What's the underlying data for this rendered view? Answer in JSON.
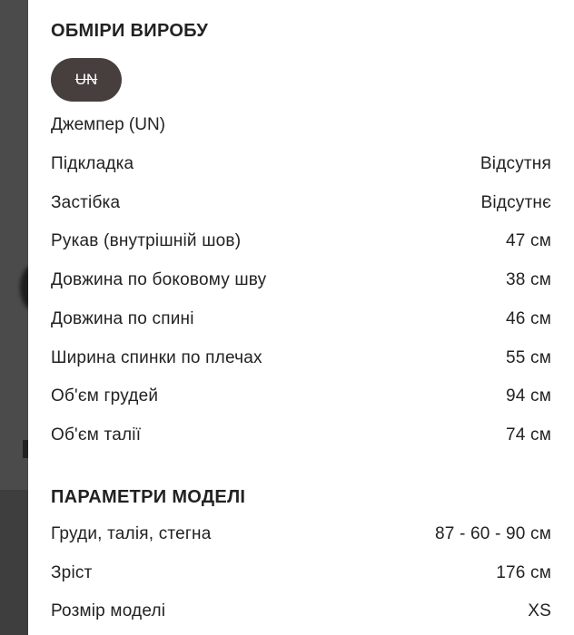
{
  "measurements": {
    "title": "ОБМІРИ ВИРОБУ",
    "size_chip": "UN",
    "product": "Джемпер (UN)",
    "rows": [
      {
        "label": "Підкладка",
        "value": "Відсутня"
      },
      {
        "label": "Застібка",
        "value": "Відсутнє"
      },
      {
        "label": "Рукав (внутрішній шов)",
        "value": "47 см"
      },
      {
        "label": "Довжина по боковому шву",
        "value": "38 см"
      },
      {
        "label": "Довжина по спині",
        "value": "46 см"
      },
      {
        "label": "Ширина спинки по плечах",
        "value": "55 см"
      },
      {
        "label": "Об'єм грудей",
        "value": "94 см"
      },
      {
        "label": "Об'єм талії",
        "value": "74 см"
      }
    ]
  },
  "model": {
    "title": "ПАРАМЕТРИ МОДЕЛІ",
    "rows": [
      {
        "label": "Груди, талія, стегна",
        "value": "87 - 60 - 90 см"
      },
      {
        "label": "Зріст",
        "value": "176 см"
      },
      {
        "label": "Розмір моделі",
        "value": "XS"
      }
    ]
  }
}
